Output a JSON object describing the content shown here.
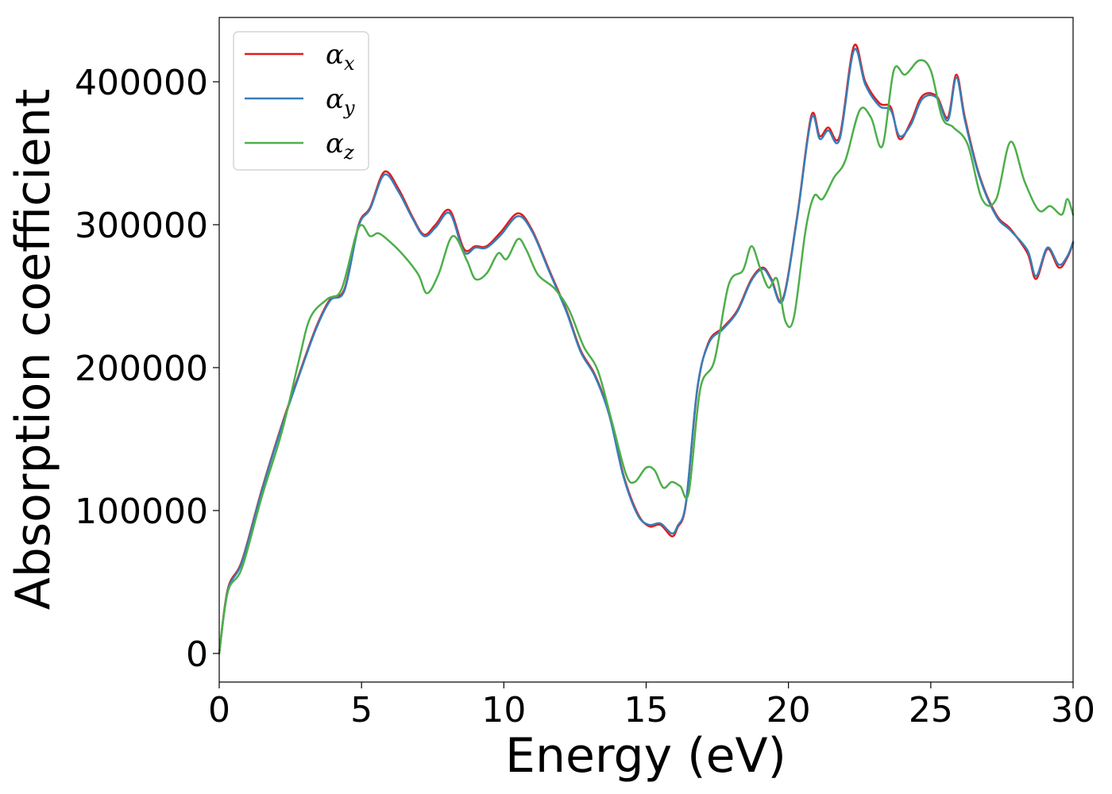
{
  "chart_data": {
    "type": "line",
    "title": "",
    "xlabel": "Energy (eV)",
    "ylabel": "Absorption coefficient",
    "xlim": [
      0,
      30
    ],
    "ylim": [
      -20000,
      445000
    ],
    "xticks": [
      0,
      5,
      10,
      15,
      20,
      25,
      30
    ],
    "xtick_labels": [
      "0",
      "5",
      "10",
      "15",
      "20",
      "25",
      "30"
    ],
    "yticks": [
      0,
      100000,
      200000,
      300000,
      400000
    ],
    "ytick_labels": [
      "0",
      "100000",
      "200000",
      "300000",
      "400000"
    ],
    "grid": false,
    "legend_position": "top-left",
    "series": [
      {
        "name": "α_x",
        "label_main": "α",
        "label_sub": "x",
        "color": "#e41a1c",
        "x": [
          0,
          0.3,
          0.8,
          1.5,
          2.2,
          2.8,
          3.4,
          3.9,
          4.4,
          4.9,
          5.3,
          5.8,
          6.3,
          6.8,
          7.2,
          7.6,
          8.1,
          8.6,
          9.0,
          9.4,
          9.9,
          10.5,
          11.0,
          11.6,
          12.2,
          12.7,
          13.2,
          13.7,
          14.2,
          14.7,
          15.1,
          15.5,
          15.9,
          16.1,
          16.4,
          16.8,
          17.2,
          17.7,
          18.2,
          18.7,
          19.1,
          19.4,
          19.8,
          20.3,
          20.8,
          21.1,
          21.4,
          21.8,
          22.3,
          22.7,
          23.2,
          23.6,
          23.9,
          24.3,
          24.7,
          25.2,
          25.6,
          25.9,
          26.2,
          26.7,
          27.3,
          27.8,
          28.4,
          28.7,
          29.1,
          29.5,
          29.8,
          30.0
        ],
        "values": [
          0,
          45000,
          65000,
          115000,
          160000,
          195000,
          228000,
          248000,
          255000,
          300000,
          312000,
          337000,
          325000,
          305000,
          293000,
          300000,
          310000,
          283000,
          285000,
          285000,
          295000,
          308000,
          296000,
          268000,
          240000,
          212000,
          195000,
          168000,
          125000,
          98000,
          89000,
          90000,
          82000,
          88000,
          105000,
          185000,
          218000,
          228000,
          240000,
          262000,
          270000,
          262000,
          248000,
          305000,
          376000,
          362000,
          368000,
          362000,
          425000,
          400000,
          385000,
          382000,
          360000,
          372000,
          390000,
          390000,
          375000,
          405000,
          375000,
          335000,
          307000,
          297000,
          280000,
          262000,
          283000,
          270000,
          277000,
          287000
        ]
      },
      {
        "name": "α_y",
        "label_main": "α",
        "label_sub": "y",
        "color": "#377eb8",
        "x": [
          0,
          0.3,
          0.8,
          1.5,
          2.2,
          2.8,
          3.4,
          3.9,
          4.4,
          4.9,
          5.3,
          5.8,
          6.3,
          6.8,
          7.2,
          7.6,
          8.1,
          8.6,
          9.0,
          9.4,
          9.9,
          10.5,
          11.0,
          11.6,
          12.2,
          12.7,
          13.2,
          13.7,
          14.2,
          14.7,
          15.1,
          15.5,
          15.9,
          16.1,
          16.4,
          16.8,
          17.2,
          17.7,
          18.2,
          18.7,
          19.1,
          19.4,
          19.8,
          20.3,
          20.8,
          21.1,
          21.4,
          21.8,
          22.3,
          22.7,
          23.2,
          23.6,
          23.9,
          24.3,
          24.7,
          25.2,
          25.6,
          25.9,
          26.2,
          26.7,
          27.3,
          27.8,
          28.4,
          28.7,
          29.1,
          29.5,
          29.8,
          30.0
        ],
        "values": [
          0,
          44000,
          64000,
          114000,
          159000,
          194000,
          227000,
          247000,
          254000,
          299000,
          311000,
          335000,
          323000,
          304000,
          292000,
          298000,
          308000,
          281000,
          284000,
          284000,
          293000,
          306000,
          295000,
          267000,
          239000,
          211000,
          194000,
          167000,
          124000,
          97000,
          90000,
          91000,
          84000,
          89000,
          106000,
          186000,
          217000,
          227000,
          239000,
          261000,
          269000,
          261000,
          247000,
          304000,
          374000,
          360000,
          366000,
          360000,
          422000,
          398000,
          383000,
          380000,
          362000,
          370000,
          388000,
          389000,
          373000,
          403000,
          373000,
          334000,
          306000,
          296000,
          282000,
          264000,
          284000,
          272000,
          278000,
          288000
        ]
      },
      {
        "name": "α_z",
        "label_main": "α",
        "label_sub": "z",
        "color": "#4daf4a",
        "x": [
          0,
          0.3,
          0.8,
          1.5,
          2.2,
          2.8,
          3.2,
          3.8,
          4.3,
          4.9,
          5.3,
          5.6,
          6.0,
          6.5,
          7.0,
          7.3,
          7.7,
          8.2,
          8.7,
          9.0,
          9.4,
          9.8,
          10.1,
          10.5,
          10.8,
          11.2,
          11.8,
          12.3,
          12.8,
          13.3,
          13.8,
          14.3,
          14.6,
          15.0,
          15.3,
          15.6,
          15.9,
          16.2,
          16.5,
          16.9,
          17.4,
          17.9,
          18.4,
          18.7,
          19.0,
          19.3,
          19.6,
          19.9,
          20.2,
          20.6,
          20.9,
          21.2,
          21.6,
          22.0,
          22.5,
          22.9,
          23.3,
          23.7,
          24.1,
          24.6,
          25.0,
          25.4,
          25.8,
          26.3,
          26.8,
          27.3,
          27.8,
          28.3,
          28.8,
          29.2,
          29.6,
          29.8,
          30.0
        ],
        "values": [
          0,
          43000,
          60000,
          110000,
          155000,
          205000,
          235000,
          248000,
          255000,
          298000,
          292000,
          294000,
          288000,
          278000,
          265000,
          252000,
          265000,
          292000,
          275000,
          262000,
          266000,
          280000,
          276000,
          290000,
          282000,
          265000,
          255000,
          240000,
          215000,
          198000,
          162000,
          125000,
          120000,
          130000,
          128000,
          116000,
          120000,
          117000,
          113000,
          185000,
          205000,
          258000,
          268000,
          285000,
          270000,
          256000,
          262000,
          232000,
          236000,
          296000,
          320000,
          318000,
          333000,
          345000,
          380000,
          375000,
          355000,
          408000,
          405000,
          415000,
          408000,
          375000,
          368000,
          356000,
          318000,
          318000,
          358000,
          330000,
          310000,
          313000,
          307000,
          318000,
          307000
        ]
      }
    ]
  }
}
